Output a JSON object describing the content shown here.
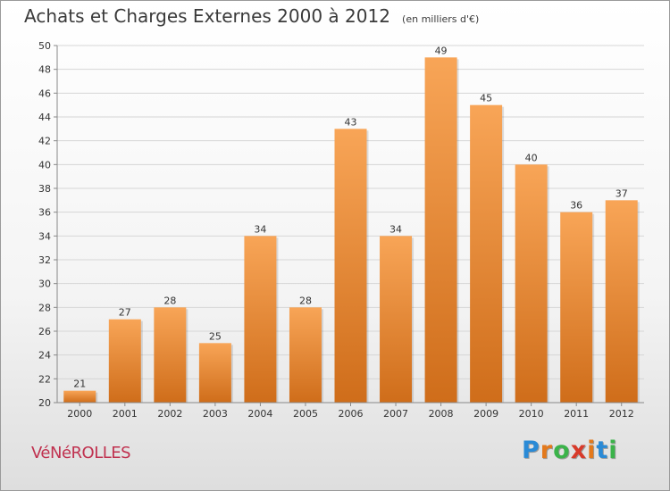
{
  "title": "Achats et Charges Externes 2000 à 2012",
  "unit": "(en milliers d'€)",
  "commune": "VéNéROLLES",
  "brand": {
    "letters": [
      "P",
      "r",
      "o",
      "x",
      "i",
      "t",
      "i"
    ],
    "colors": [
      "#2a8ad6",
      "#e3791c",
      "#3bb34a",
      "#d83a2a",
      "#e3791c",
      "#2a8ad6",
      "#3bb34a"
    ]
  },
  "bar_colors": {
    "light": "#f8a557",
    "dark": "#cf6d1a"
  },
  "chart_data": {
    "type": "bar",
    "title": "Achats et Charges Externes 2000 à 2012",
    "categories": [
      "2000",
      "2001",
      "2002",
      "2003",
      "2004",
      "2005",
      "2006",
      "2007",
      "2008",
      "2009",
      "2010",
      "2011",
      "2012"
    ],
    "values": [
      21,
      27,
      28,
      25,
      34,
      28,
      43,
      34,
      49,
      45,
      40,
      36,
      37
    ],
    "ylim": [
      20,
      50
    ],
    "yticks": [
      20,
      22,
      24,
      26,
      28,
      30,
      32,
      34,
      36,
      38,
      40,
      42,
      44,
      46,
      48,
      50
    ],
    "grid": true,
    "data_labels": true
  }
}
